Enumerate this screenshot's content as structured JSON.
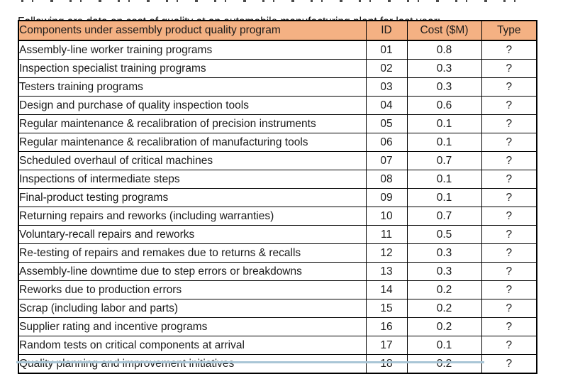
{
  "document": {
    "intro_text": "Following are data on cost of quality at an automobile manufacturing plant for last year:"
  },
  "table": {
    "headers": [
      "Components under assembly product quality program",
      "ID",
      "Cost ($M)",
      "Type"
    ],
    "rows": [
      [
        "Assembly-line worker training programs",
        "01",
        "0.8",
        "?"
      ],
      [
        "Inspection specialist training programs",
        "02",
        "0.3",
        "?"
      ],
      [
        "Testers training programs",
        "03",
        "0.3",
        "?"
      ],
      [
        "Design and purchase of quality inspection tools",
        "04",
        "0.6",
        "?"
      ],
      [
        "Regular maintenance & recalibration of precision instruments",
        "05",
        "0.1",
        "?"
      ],
      [
        "Regular maintenance & recalibration of manufacturing tools",
        "06",
        "0.1",
        "?"
      ],
      [
        "Scheduled overhaul of critical machines",
        "07",
        "0.7",
        "?"
      ],
      [
        "Inspections of intermediate steps",
        "08",
        "0.1",
        "?"
      ],
      [
        "Final-product testing programs",
        "09",
        "0.1",
        "?"
      ],
      [
        "Returning repairs and reworks (including warranties)",
        "10",
        "0.7",
        "?"
      ],
      [
        "Voluntary-recall repairs and reworks",
        "11",
        "0.5",
        "?"
      ],
      [
        "Re-testing of repairs and remakes due to returns & recalls",
        "12",
        "0.3",
        "?"
      ],
      [
        "Assembly-line downtime due to step errors or breakdowns",
        "13",
        "0.3",
        "?"
      ],
      [
        "Reworks due to production errors",
        "14",
        "0.2",
        "?"
      ],
      [
        "Scrap (including labor and parts)",
        "15",
        "0.2",
        "?"
      ],
      [
        "Supplier rating and incentive programs",
        "16",
        "0.2",
        "?"
      ],
      [
        "Random tests on critical components at arrival",
        "17",
        "0.1",
        "?"
      ],
      [
        "Quality planning and improvement initiatives",
        "18",
        "0.2",
        "?"
      ]
    ]
  },
  "colors": {
    "header_bg": "#F4B183",
    "border": "#000000",
    "text": "#1A1A1A",
    "bottom_strip": "#A9C6D6"
  }
}
